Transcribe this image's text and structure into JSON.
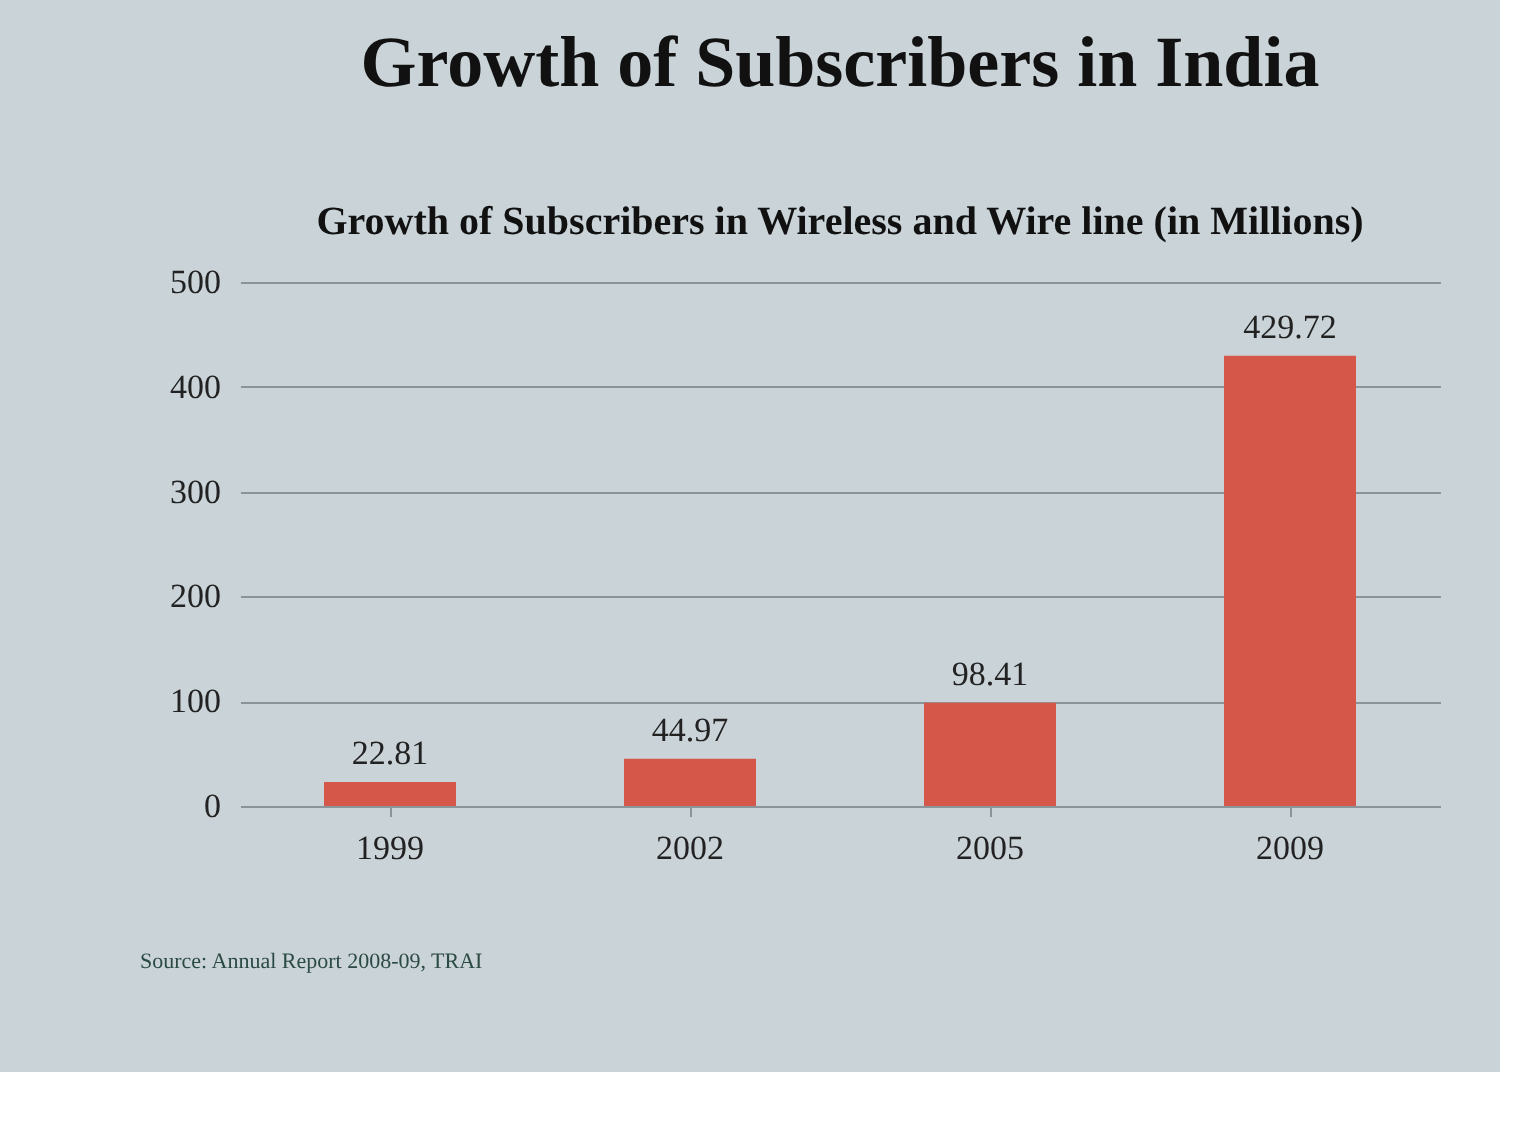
{
  "chart_data": {
    "type": "bar",
    "title": "Growth of Subscribers in India",
    "subtitle": "Growth of Subscribers in Wireless and Wire line (in Millions)",
    "categories": [
      "1999",
      "2002",
      "2005",
      "2009"
    ],
    "values": [
      22.81,
      44.97,
      98.41,
      429.72
    ],
    "color": "#d4574a",
    "ylim": [
      0,
      500
    ],
    "yticks": [
      0,
      100,
      200,
      300,
      400,
      500
    ],
    "grid": "y",
    "data_labels": true,
    "annotations": [
      "Source: Annual Report 2008-09, TRAI"
    ]
  }
}
